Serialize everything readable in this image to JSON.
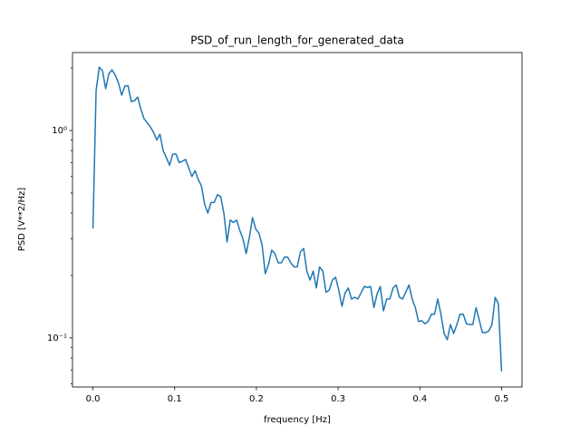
{
  "chart_data": {
    "type": "line",
    "title": "PSD_of_run_length_for_generated_data",
    "xlabel": "frequency [Hz]",
    "ylabel": "PSD [V**2/Hz]",
    "yscale": "log",
    "grid": false,
    "xlim": [
      -0.025,
      0.525
    ],
    "ylim": [
      0.058,
      2.375
    ],
    "xticks": [
      {
        "value": 0,
        "label": "0.0"
      },
      0.1,
      0.2,
      0.3,
      0.4,
      0.5
    ],
    "yticks": [
      {
        "value": 0.1,
        "label": "10⁻¹"
      },
      {
        "value": 1,
        "label": "10⁰"
      }
    ],
    "yminorticks": [
      0.06,
      0.07,
      0.08,
      0.09,
      0.2,
      0.3,
      0.4,
      0.5,
      0.6,
      0.7,
      0.8,
      0.9,
      2
    ],
    "x": [
      0,
      0.0039,
      0.0078,
      0.0117,
      0.0156,
      0.0195,
      0.0234,
      0.0273,
      0.0313,
      0.0352,
      0.0391,
      0.043,
      0.0469,
      0.0508,
      0.0547,
      0.0586,
      0.0625,
      0.0664,
      0.0703,
      0.0742,
      0.0781,
      0.082,
      0.0859,
      0.0898,
      0.0938,
      0.0977,
      0.1016,
      0.1055,
      0.1094,
      0.1133,
      0.1172,
      0.1211,
      0.125,
      0.1289,
      0.1328,
      0.1367,
      0.1406,
      0.1445,
      0.1484,
      0.1523,
      0.1563,
      0.1602,
      0.1641,
      0.168,
      0.1719,
      0.1758,
      0.1797,
      0.1836,
      0.1875,
      0.1914,
      0.1953,
      0.1992,
      0.2031,
      0.207,
      0.2109,
      0.2148,
      0.2188,
      0.2227,
      0.2266,
      0.2305,
      0.2344,
      0.2383,
      0.2422,
      0.2461,
      0.25,
      0.2539,
      0.2578,
      0.2617,
      0.2656,
      0.2695,
      0.2734,
      0.2773,
      0.2813,
      0.2852,
      0.2891,
      0.293,
      0.2969,
      0.3008,
      0.3047,
      0.3086,
      0.3125,
      0.3164,
      0.3203,
      0.3242,
      0.3281,
      0.332,
      0.3359,
      0.3398,
      0.3438,
      0.3477,
      0.3516,
      0.3555,
      0.3594,
      0.3633,
      0.3672,
      0.3711,
      0.375,
      0.3789,
      0.3828,
      0.3867,
      0.3906,
      0.3945,
      0.3984,
      0.4023,
      0.4063,
      0.4102,
      0.4141,
      0.418,
      0.4219,
      0.4258,
      0.4297,
      0.4336,
      0.4375,
      0.4414,
      0.4453,
      0.4492,
      0.4531,
      0.457,
      0.4609,
      0.4648,
      0.4688,
      0.4727,
      0.4766,
      0.4805,
      0.4844,
      0.4883,
      0.4922,
      0.4961,
      0.5
    ],
    "series": [
      {
        "color": "#1f77b4",
        "values": [
          0.337,
          1.56,
          2.02,
          1.94,
          1.59,
          1.88,
          1.96,
          1.85,
          1.69,
          1.48,
          1.64,
          1.64,
          1.38,
          1.39,
          1.45,
          1.27,
          1.14,
          1.09,
          1.04,
          0.98,
          0.9,
          0.96,
          0.8,
          0.74,
          0.68,
          0.77,
          0.77,
          0.7,
          0.71,
          0.725,
          0.66,
          0.6,
          0.64,
          0.58,
          0.54,
          0.44,
          0.4,
          0.45,
          0.45,
          0.49,
          0.48,
          0.4,
          0.29,
          0.37,
          0.36,
          0.37,
          0.33,
          0.3,
          0.255,
          0.305,
          0.38,
          0.335,
          0.32,
          0.28,
          0.204,
          0.226,
          0.265,
          0.255,
          0.23,
          0.23,
          0.245,
          0.245,
          0.23,
          0.22,
          0.22,
          0.26,
          0.27,
          0.21,
          0.19,
          0.21,
          0.174,
          0.22,
          0.21,
          0.166,
          0.17,
          0.19,
          0.196,
          0.17,
          0.142,
          0.165,
          0.174,
          0.154,
          0.157,
          0.154,
          0.165,
          0.177,
          0.175,
          0.177,
          0.14,
          0.163,
          0.177,
          0.135,
          0.154,
          0.154,
          0.174,
          0.18,
          0.157,
          0.154,
          0.166,
          0.18,
          0.154,
          0.14,
          0.12,
          0.121,
          0.117,
          0.12,
          0.13,
          0.13,
          0.154,
          0.13,
          0.105,
          0.098,
          0.116,
          0.105,
          0.116,
          0.13,
          0.13,
          0.117,
          0.116,
          0.116,
          0.14,
          0.122,
          0.106,
          0.106,
          0.108,
          0.116,
          0.157,
          0.146,
          0.069
        ]
      }
    ]
  }
}
